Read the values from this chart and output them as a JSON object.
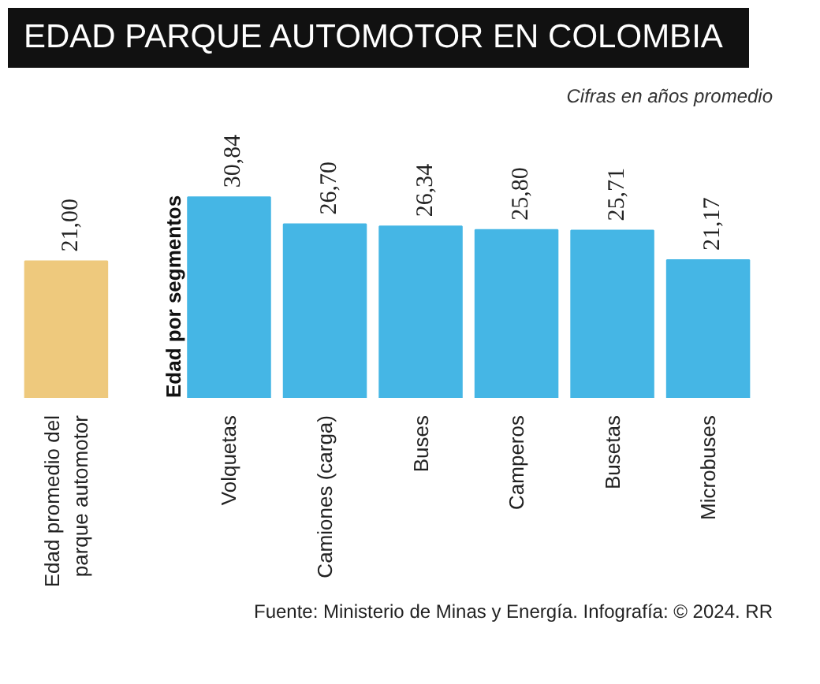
{
  "chart_data": {
    "type": "bar",
    "title": "EDAD PARQUE AUTOMOTOR EN COLOMBIA",
    "subtitle": "Cifras en años promedio",
    "categories": [
      "Edad promedio del parque automotor",
      "Volquetas",
      "Camiones (carga)",
      "Buses",
      "Camperos",
      "Busetas",
      "Microbuses"
    ],
    "values": [
      21.0,
      30.84,
      26.7,
      26.34,
      25.8,
      25.71,
      21.17
    ],
    "value_labels": [
      "21,00",
      "30,84",
      "26,70",
      "26,34",
      "25,80",
      "25,71",
      "21,17"
    ],
    "colors": [
      "#eec97d",
      "#45b6e5",
      "#45b6e5",
      "#45b6e5",
      "#45b6e5",
      "#45b6e5",
      "#45b6e5"
    ],
    "grid": false,
    "annotations": [
      "Edad por segmentos",
      "Fuente: Ministerio de Minas y Energía. Infografía: © 2024. RR"
    ]
  }
}
